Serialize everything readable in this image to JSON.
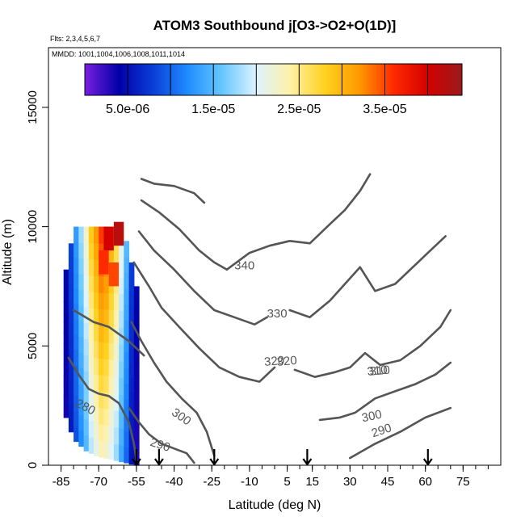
{
  "chart_data": {
    "type": "heatmap",
    "title": "ATOM3 Southbound j[O3->O2+O(1D)]",
    "flights_note": "Flts: 2,3,4,5,6,7",
    "mmdd_note": "MMDD: 1001,1004,1006,1008,1011,1014",
    "xlabel": "Latitude (deg N)",
    "ylabel": "Altitude (m)",
    "xlim": [
      -90,
      90
    ],
    "ylim": [
      0,
      17500
    ],
    "x_ticks": [
      -85,
      -70,
      -55,
      -40,
      -25,
      -10,
      5,
      15,
      30,
      45,
      60,
      75
    ],
    "x_tick_labels": [
      "-85",
      "-70",
      "-55",
      "-40",
      "-25",
      "-10",
      "5",
      "15",
      "30",
      "45",
      "60",
      "75"
    ],
    "y_ticks": [
      0,
      5000,
      10000,
      15000
    ],
    "y_tick_labels": [
      "0",
      "5000",
      "10000",
      "15000"
    ],
    "colorbar": {
      "min": 0.0,
      "max": 4.4e-05,
      "colors": [
        "#7a1fe0",
        "#0000a8",
        "#0b3fd8",
        "#1f8cff",
        "#66c7ff",
        "#ddf3ff",
        "#fff1a8",
        "#ffd21f",
        "#ff9a00",
        "#ff2a00",
        "#d40000",
        "#9a1b1b"
      ],
      "break_values": [
        5e-06,
        1e-05,
        1.5e-05,
        2e-05,
        2.5e-05,
        3e-05,
        3.5e-05,
        4e-05
      ],
      "label_values": [
        5e-06,
        1.5e-05,
        2.5e-05,
        3.5e-05
      ],
      "labels": [
        "5.0e-06",
        "1.5e-05",
        "2.5e-05",
        "3.5e-05"
      ]
    },
    "heatmap": {
      "lat_min": -83,
      "lat_max": -54,
      "alt_top": 10000,
      "columns": [
        [
          -83,
          4e-06,
          2000,
          8200
        ],
        [
          -81,
          7e-06,
          1400,
          9300
        ],
        [
          -79,
          1.1e-05,
          1000,
          10000
        ],
        [
          -77,
          1.5e-05,
          800,
          10000
        ],
        [
          -75,
          1.9e-05,
          600,
          10000
        ],
        [
          -73,
          2.4e-05,
          500,
          10000
        ],
        [
          -71,
          2.7e-05,
          400,
          10000
        ],
        [
          -69,
          3e-05,
          350,
          10000
        ],
        [
          -67,
          2.9e-05,
          300,
          10000
        ],
        [
          -65,
          2.6e-05,
          250,
          10000
        ],
        [
          -63,
          2.3e-05,
          200,
          10000
        ],
        [
          -61,
          1.8e-05,
          150,
          10000
        ],
        [
          -59,
          1.3e-05,
          100,
          9400
        ],
        [
          -57,
          7e-06,
          50,
          8500
        ],
        [
          -55,
          4e-06,
          0,
          7500
        ]
      ],
      "hotspots": [
        {
          "lat": -66,
          "alt": 9500,
          "value": 4e-05
        },
        {
          "lat": -62,
          "alt": 9700,
          "value": 4.2e-05
        },
        {
          "lat": -68,
          "alt": 8500,
          "value": 3.6e-05
        },
        {
          "lat": -64,
          "alt": 8000,
          "value": 3.5e-05
        }
      ]
    },
    "contours": [
      {
        "level": "280",
        "points": [
          [
            -82,
            4500
          ],
          [
            -78,
            3800
          ],
          [
            -74,
            3200
          ],
          [
            -70,
            3000
          ],
          [
            -66,
            2900
          ],
          [
            -62,
            2600
          ],
          [
            -58,
            1800
          ],
          [
            -56,
            900
          ],
          [
            -55,
            200
          ]
        ],
        "label_at": [
          -76,
          2300
        ],
        "label_rot": 28
      },
      {
        "level": "290",
        "points": [
          [
            -58,
            2400
          ],
          [
            -54,
            1800
          ],
          [
            -50,
            1300
          ],
          [
            -45,
            900
          ],
          [
            -40,
            700
          ],
          [
            -35,
            500
          ],
          [
            -32,
            100
          ]
        ],
        "label_at": [
          -46,
          700
        ],
        "label_rot": 18
      },
      {
        "level": "300",
        "points": [
          [
            -57,
            6000
          ],
          [
            -53,
            5200
          ],
          [
            -48,
            4300
          ],
          [
            -43,
            3500
          ],
          [
            -37,
            2800
          ],
          [
            -31,
            2200
          ],
          [
            -27,
            1400
          ],
          [
            -24,
            400
          ]
        ],
        "label_at": [
          -38,
          1900
        ],
        "label_rot": 35
      },
      {
        "level": "320",
        "points": [
          [
            -56,
            8500
          ],
          [
            -50,
            7500
          ],
          [
            -45,
            6600
          ],
          [
            -38,
            5800
          ],
          [
            -30,
            4900
          ],
          [
            -22,
            4100
          ],
          [
            -14,
            3700
          ],
          [
            -6,
            3500
          ],
          [
            0,
            4100
          ]
        ],
        "label_at": [
          5,
          4200
        ],
        "label_rot": -5
      },
      {
        "level": "330",
        "points": [
          [
            -54,
            9800
          ],
          [
            -48,
            9000
          ],
          [
            -40,
            8200
          ],
          [
            -32,
            7300
          ],
          [
            -24,
            6500
          ],
          [
            -16,
            6200
          ],
          [
            -8,
            5900
          ],
          [
            -3,
            6200
          ]
        ],
        "label_at": [
          1,
          6200
        ],
        "label_rot": 0
      },
      {
        "level": "340",
        "points": [
          [
            -53,
            11100
          ],
          [
            -46,
            10600
          ],
          [
            -38,
            9900
          ],
          [
            -30,
            9000
          ],
          [
            -24,
            8500
          ],
          [
            -19,
            8200
          ]
        ],
        "label_at": [
          -12,
          8200
        ],
        "label_rot": 0
      },
      {
        "level": "310",
        "points": [
          [
            -80,
            6500
          ],
          [
            -72,
            6000
          ],
          [
            -66,
            5800
          ],
          [
            -58,
            5200
          ],
          [
            -52,
            4600
          ]
        ],
        "label_at": [
          42,
          3800
        ],
        "label_rot": -5
      },
      {
        "level": "290",
        "points": [
          [
            30,
            300
          ],
          [
            40,
            900
          ],
          [
            50,
            1400
          ],
          [
            60,
            2000
          ],
          [
            70,
            2400
          ]
        ],
        "label_at": [
          43,
          1300
        ],
        "label_rot": -18
      },
      {
        "level": "300",
        "points": [
          [
            18,
            1900
          ],
          [
            26,
            2000
          ],
          [
            32,
            2200
          ],
          [
            40,
            2800
          ],
          [
            48,
            3100
          ],
          [
            56,
            3400
          ],
          [
            64,
            3800
          ],
          [
            70,
            4300
          ]
        ],
        "label_at": [
          39,
          1900
        ],
        "label_rot": -12
      },
      {
        "level": "310",
        "points": [
          [
            8,
            4000
          ],
          [
            16,
            3700
          ],
          [
            24,
            3900
          ],
          [
            30,
            4100
          ],
          [
            36,
            4700
          ],
          [
            42,
            4200
          ],
          [
            50,
            4400
          ],
          [
            58,
            5000
          ],
          [
            66,
            5800
          ],
          [
            70,
            6500
          ]
        ],
        "label_at": [
          41,
          3800
        ],
        "label_rot": -6
      },
      {
        "level": "320",
        "points": [
          [
            6,
            6500
          ],
          [
            14,
            6200
          ],
          [
            22,
            6900
          ],
          [
            28,
            7600
          ],
          [
            34,
            8300
          ],
          [
            40,
            7300
          ],
          [
            48,
            7600
          ],
          [
            55,
            8300
          ],
          [
            62,
            9000
          ],
          [
            68,
            9600
          ]
        ],
        "label_at": [
          0,
          4200
        ],
        "label_rot": -5
      },
      {
        "level": "330",
        "points": [
          [
            -19,
            8200
          ],
          [
            -10,
            8900
          ],
          [
            -2,
            9200
          ],
          [
            6,
            9400
          ],
          [
            14,
            9300
          ],
          [
            22,
            10100
          ],
          [
            28,
            10700
          ],
          [
            34,
            11500
          ],
          [
            38,
            12200
          ]
        ],
        "label_at": [
          1,
          6200
        ],
        "label_rot": 0
      },
      {
        "level": "340",
        "points": [
          [
            -53,
            12000
          ],
          [
            -48,
            11800
          ],
          [
            -40,
            11700
          ],
          [
            -32,
            11400
          ],
          [
            -28,
            11000
          ]
        ],
        "label_at": [
          -12,
          8200
        ],
        "label_rot": 0
      }
    ],
    "arrows": [
      -55,
      -46,
      -24,
      13,
      61
    ]
  }
}
